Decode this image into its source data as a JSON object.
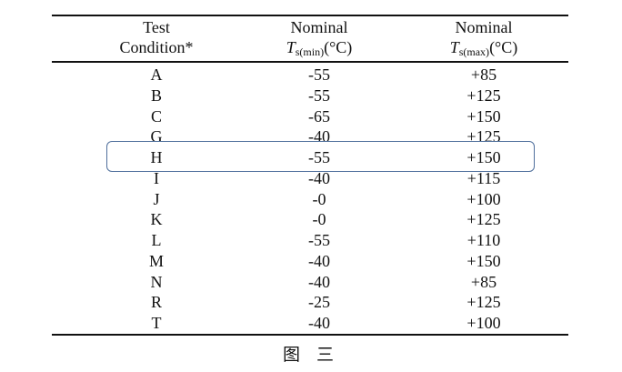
{
  "table": {
    "headers": [
      {
        "line1": "Test",
        "line2": "Condition*"
      },
      {
        "line1": "Nominal",
        "symbol": "T",
        "sub": "s(min)",
        "unit": "(°C)"
      },
      {
        "line1": "Nominal",
        "symbol": "T",
        "sub": "s(max)",
        "unit": "(°C)"
      }
    ],
    "rows": [
      [
        "A",
        "-55",
        "+85"
      ],
      [
        "B",
        "-55",
        "+125"
      ],
      [
        "C",
        "-65",
        "+150"
      ],
      [
        "G",
        "-40",
        "+125"
      ],
      [
        "H",
        "-55",
        "+150"
      ],
      [
        "I",
        "-40",
        "+115"
      ],
      [
        "J",
        "-0",
        "+100"
      ],
      [
        "K",
        "-0",
        "+125"
      ],
      [
        "L",
        "-55",
        "+110"
      ],
      [
        "M",
        "-40",
        "+150"
      ],
      [
        "N",
        "-40",
        "+85"
      ],
      [
        "R",
        "-25",
        "+125"
      ],
      [
        "T",
        "-40",
        "+100"
      ]
    ],
    "highlighted_row": "H",
    "highlight_color": "#4f6f9c"
  },
  "caption": "图 三"
}
